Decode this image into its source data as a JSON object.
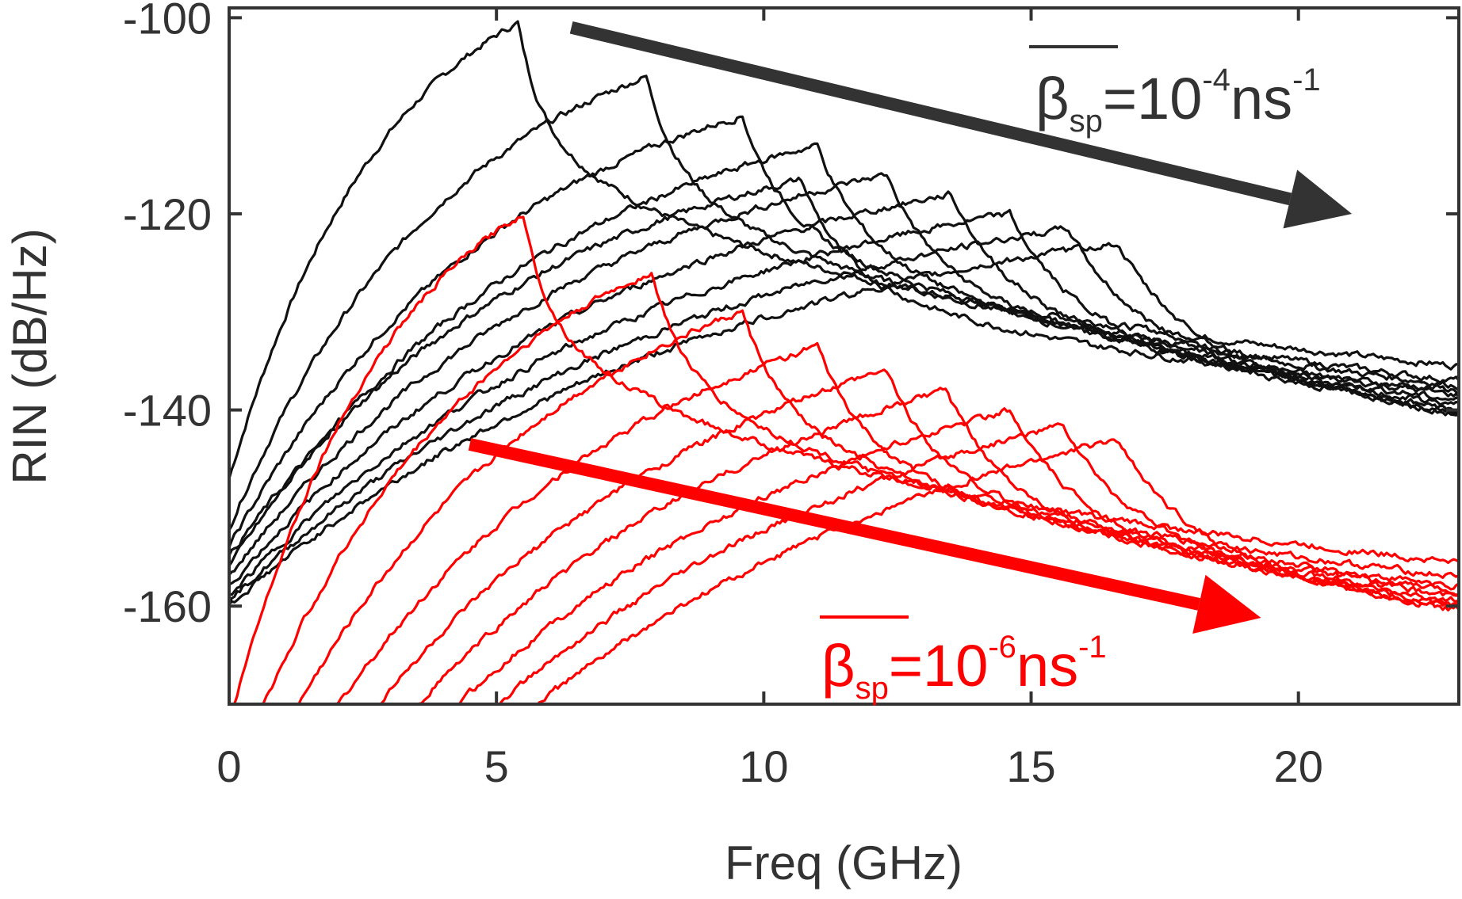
{
  "chart_data": {
    "type": "line",
    "title": "",
    "xlabel": "Freq (GHz)",
    "ylabel": "RIN (dB/Hz)",
    "xlim": [
      0,
      23
    ],
    "ylim": [
      -170,
      -99
    ],
    "xticks": [
      0,
      5,
      10,
      15,
      20
    ],
    "yticks": [
      -100,
      -120,
      -140,
      -160
    ],
    "grid": false,
    "colors": {
      "black_series": "#111111",
      "red_series": "#ff0000",
      "black_arrow": "#333333",
      "red_arrow": "#ff0000",
      "axis": "#333333"
    },
    "groups": [
      {
        "name": "beta_sp = 1e-4 ns^-1",
        "color": "#111111",
        "series": [
          {
            "name": "black-1",
            "peak_freq": 5.4,
            "peak_rin": -100.5,
            "start_rin": -147,
            "end_rin": -135.5
          },
          {
            "name": "black-2",
            "peak_freq": 7.8,
            "peak_rin": -106,
            "start_rin": -152,
            "end_rin": -137
          },
          {
            "name": "black-3",
            "peak_freq": 9.6,
            "peak_rin": -110,
            "start_rin": -154,
            "end_rin": -137.5
          },
          {
            "name": "black-4",
            "peak_freq": 10.7,
            "peak_rin": -116.5,
            "start_rin": -155,
            "end_rin": -138
          },
          {
            "name": "black-5",
            "peak_freq": 11.0,
            "peak_rin": -113,
            "start_rin": -156,
            "end_rin": -138.5
          },
          {
            "name": "black-6",
            "peak_freq": 12.3,
            "peak_rin": -116,
            "start_rin": -157,
            "end_rin": -139
          },
          {
            "name": "black-7",
            "peak_freq": 13.5,
            "peak_rin": -118,
            "start_rin": -158,
            "end_rin": -139.5
          },
          {
            "name": "black-8",
            "peak_freq": 14.6,
            "peak_rin": -120,
            "start_rin": -159,
            "end_rin": -140
          },
          {
            "name": "black-9",
            "peak_freq": 15.7,
            "peak_rin": -121.5,
            "start_rin": -159.5,
            "end_rin": -140
          },
          {
            "name": "black-10",
            "peak_freq": 16.6,
            "peak_rin": -123,
            "start_rin": -160,
            "end_rin": -140.5
          }
        ]
      },
      {
        "name": "beta_sp = 1e-6 ns^-1",
        "color": "#ff0000",
        "series": [
          {
            "name": "red-1",
            "peak_freq": 5.5,
            "peak_rin": -120,
            "start_freq": 0.0,
            "end_rin": -155.5
          },
          {
            "name": "red-2",
            "peak_freq": 7.9,
            "peak_rin": -126,
            "start_freq": 0.5,
            "end_rin": -157
          },
          {
            "name": "red-3",
            "peak_freq": 9.6,
            "peak_rin": -130,
            "start_freq": 1.1,
            "end_rin": -158
          },
          {
            "name": "red-4",
            "peak_freq": 11.0,
            "peak_rin": -133.5,
            "start_freq": 1.8,
            "end_rin": -158.5
          },
          {
            "name": "red-5",
            "peak_freq": 12.3,
            "peak_rin": -136,
            "start_freq": 2.5,
            "end_rin": -159
          },
          {
            "name": "red-6",
            "peak_freq": 13.4,
            "peak_rin": -138,
            "start_freq": 3.2,
            "end_rin": -159.5
          },
          {
            "name": "red-7",
            "peak_freq": 14.6,
            "peak_rin": -140,
            "start_freq": 3.9,
            "end_rin": -160
          },
          {
            "name": "red-8",
            "peak_freq": 15.6,
            "peak_rin": -141.5,
            "start_freq": 4.6,
            "end_rin": -160
          },
          {
            "name": "red-9",
            "peak_freq": 16.6,
            "peak_rin": -143,
            "start_freq": 5.3,
            "end_rin": -160.5
          }
        ]
      }
    ],
    "annotations": [
      {
        "name": "black-annotation",
        "text_symbol": "β",
        "text_sub": "sp",
        "text_base": "=10",
        "text_exp": "-4",
        "text_unit": "ns",
        "text_unit_exp": "-1",
        "color": "#333333",
        "arrow": {
          "from": [
            6.4,
            -101
          ],
          "to": [
            21.0,
            -120
          ]
        }
      },
      {
        "name": "red-annotation",
        "text_symbol": "β",
        "text_sub": "sp",
        "text_base": "=10",
        "text_exp": "-6",
        "text_unit": "ns",
        "text_unit_exp": "-1",
        "color": "#ff0000",
        "arrow": {
          "from": [
            4.5,
            -143.5
          ],
          "to": [
            19.3,
            -161.2
          ]
        }
      }
    ]
  }
}
